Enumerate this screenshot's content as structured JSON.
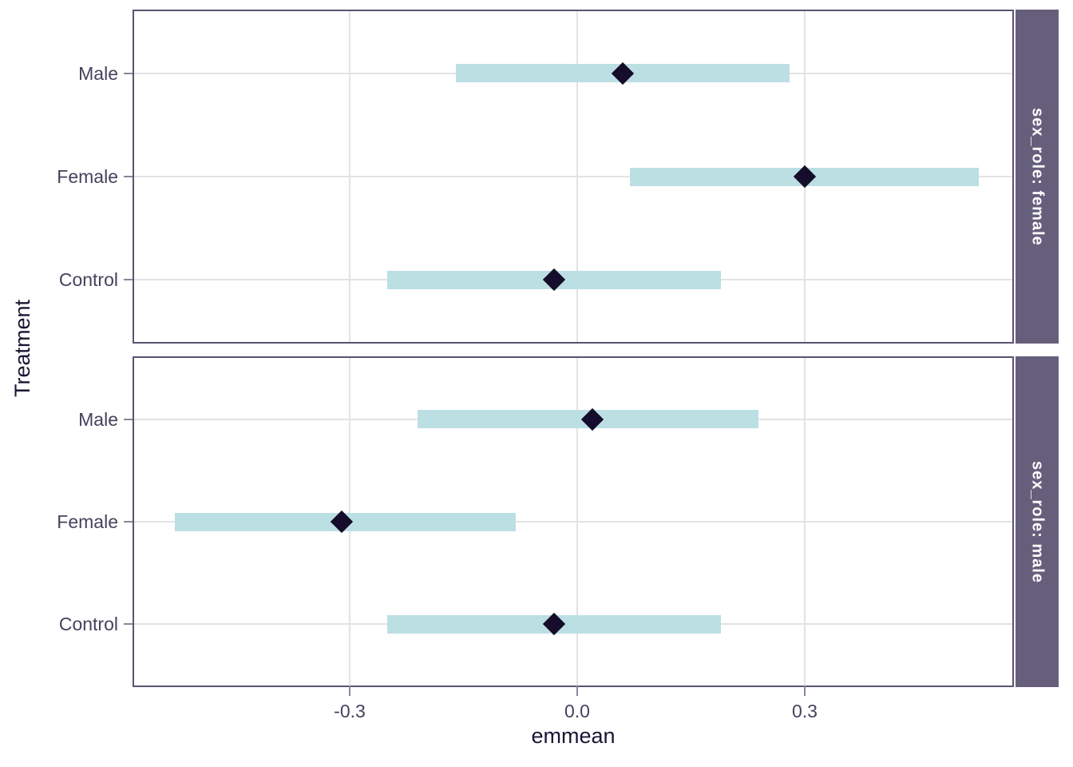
{
  "chart_data": {
    "type": "pointrange",
    "title": "",
    "xlabel": "emmean",
    "ylabel": "Treatment",
    "x_axis": {
      "label": "emmean",
      "ticks": [
        -0.3,
        0.0,
        0.3
      ],
      "tick_labels": [
        "-0.3",
        "0.0",
        "0.3"
      ],
      "range": [
        -0.584,
        0.574
      ],
      "grid": "major-only"
    },
    "y_axis": {
      "label": "Treatment",
      "categories": [
        "Male",
        "Female",
        "Control"
      ]
    },
    "facets": [
      {
        "label": "sex_role: female",
        "values": [
          {
            "category": "Male",
            "emmean": 0.06,
            "lower": -0.16,
            "upper": 0.28
          },
          {
            "category": "Female",
            "emmean": 0.3,
            "lower": 0.07,
            "upper": 0.53
          },
          {
            "category": "Control",
            "emmean": -0.03,
            "lower": -0.25,
            "upper": 0.19
          }
        ]
      },
      {
        "label": "sex_role: male",
        "values": [
          {
            "category": "Male",
            "emmean": 0.02,
            "lower": -0.21,
            "upper": 0.24
          },
          {
            "category": "Female",
            "emmean": -0.31,
            "lower": -0.53,
            "upper": -0.08
          },
          {
            "category": "Control",
            "emmean": -0.03,
            "lower": -0.25,
            "upper": 0.19
          }
        ]
      }
    ],
    "legend": "none",
    "colors": {
      "interval_bar": "#BCDFE3",
      "point": "#150D2B",
      "strip_background": "#665F7C",
      "strip_text": "#FFFFFF",
      "gridline": "#E2E2E7",
      "panel_border": "#5A5370",
      "tick_mark": "#8B8498",
      "axis_text": "#47415C",
      "axis_title": "#1B1433"
    }
  }
}
